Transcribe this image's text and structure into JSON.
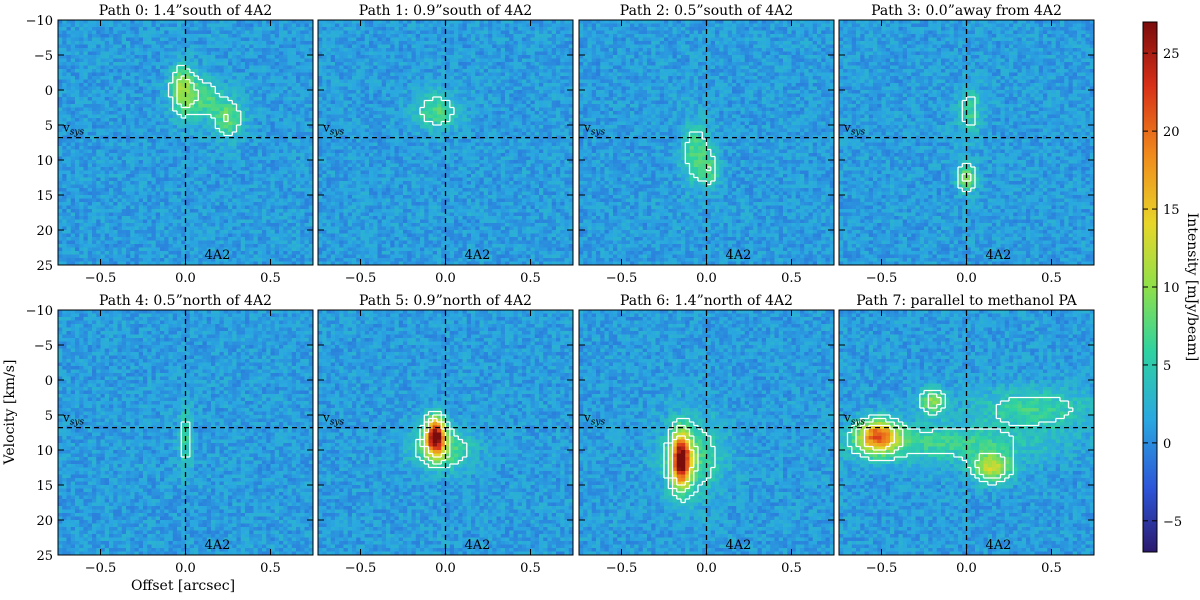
{
  "figure": {
    "ylabel": "Velocity [km/s]",
    "xlabel": "Offset [arcsec]",
    "colorbar_label": "Intensity [mJy/beam]",
    "vsys_label": "v",
    "vsys_sub": "sys",
    "source_label": "4A2"
  },
  "colors": {
    "background": "#2f6fd6",
    "contour": "#ffffff",
    "axis": "#000000",
    "colormap": [
      "#2b1a6e",
      "#2d55d8",
      "#2aa8e0",
      "#2fd2a0",
      "#8fe04a",
      "#e8d62a",
      "#f08a1c",
      "#d83018",
      "#7a0c0c"
    ]
  },
  "chart_data": [
    {
      "type": "heatmap",
      "title": "Path 0: 1.4”south of 4A2",
      "xlim": [
        -0.75,
        0.75
      ],
      "ylim": [
        25,
        -10
      ],
      "vsys": 6.8,
      "xticks": [
        -0.5,
        0.0,
        0.5
      ],
      "xtick_labels": [
        "−0.5",
        "0.0",
        "0.5"
      ],
      "yticks": [
        -10,
        -5,
        0,
        5,
        10,
        15,
        20,
        25
      ],
      "ytick_labels": [
        "−10",
        "−5",
        "0",
        "5",
        "10",
        "15",
        "20",
        "25"
      ],
      "emission": [
        {
          "x": -0.02,
          "v": 0.0,
          "peak": 9,
          "sx": 0.05,
          "sv": 2.5
        },
        {
          "x": 0.1,
          "v": 1.0,
          "peak": 6,
          "sx": 0.07,
          "sv": 2.0
        },
        {
          "x": 0.25,
          "v": 4.0,
          "peak": 7,
          "sx": 0.06,
          "sv": 2.0
        }
      ]
    },
    {
      "type": "heatmap",
      "title": "Path 1: 0.9”south of 4A2",
      "xlim": [
        -0.75,
        0.75
      ],
      "ylim": [
        25,
        -10
      ],
      "vsys": 6.8,
      "xticks": [
        -0.5,
        0.0,
        0.5
      ],
      "xtick_labels": [
        "−0.5",
        "0.0",
        "0.5"
      ],
      "yticks": [
        -10,
        -5,
        0,
        5,
        10,
        15,
        20,
        25
      ],
      "ytick_labels": [
        "−10",
        "−5",
        "0",
        "5",
        "10",
        "15",
        "20",
        "25"
      ],
      "emission": [
        {
          "x": -0.05,
          "v": 3.0,
          "peak": 6,
          "sx": 0.09,
          "sv": 1.8
        }
      ]
    },
    {
      "type": "heatmap",
      "title": "Path 2: 0.5”south of 4A2",
      "xlim": [
        -0.75,
        0.75
      ],
      "ylim": [
        25,
        -10
      ],
      "vsys": 6.8,
      "xticks": [
        -0.5,
        0.0,
        0.5
      ],
      "xtick_labels": [
        "−0.5",
        "0.0",
        "0.5"
      ],
      "yticks": [
        -10,
        -5,
        0,
        5,
        10,
        15,
        20,
        25
      ],
      "ytick_labels": [
        "−10",
        "−5",
        "0",
        "5",
        "10",
        "15",
        "20",
        "25"
      ],
      "emission": [
        {
          "x": -0.06,
          "v": 9.0,
          "peak": 6,
          "sx": 0.06,
          "sv": 3.0
        },
        {
          "x": 0.02,
          "v": 11.5,
          "peak": 5,
          "sx": 0.04,
          "sv": 1.5
        }
      ]
    },
    {
      "type": "heatmap",
      "title": "Path 3: 0.0”away from 4A2",
      "xlim": [
        -0.75,
        0.75
      ],
      "ylim": [
        25,
        -10
      ],
      "vsys": 6.8,
      "xticks": [
        -0.5,
        0.0,
        0.5
      ],
      "xtick_labels": [
        "−0.5",
        "0.0",
        "0.5"
      ],
      "yticks": [
        -10,
        -5,
        0,
        5,
        10,
        15,
        20,
        25
      ],
      "ytick_labels": [
        "−10",
        "−5",
        "0",
        "5",
        "10",
        "15",
        "20",
        "25"
      ],
      "emission": [
        {
          "x": 0.02,
          "v": 3.0,
          "peak": 5,
          "sx": 0.05,
          "sv": 2.5
        },
        {
          "x": 0.0,
          "v": 12.5,
          "peak": 8,
          "sx": 0.04,
          "sv": 1.5
        }
      ]
    },
    {
      "type": "heatmap",
      "title": "Path 4: 0.5”north of 4A2",
      "xlim": [
        -0.75,
        0.75
      ],
      "ylim": [
        25,
        -10
      ],
      "vsys": 6.8,
      "xticks": [
        -0.5,
        0.0,
        0.5
      ],
      "xtick_labels": [
        "−0.5",
        "0.0",
        "0.5"
      ],
      "yticks": [
        -10,
        -5,
        0,
        5,
        10,
        15,
        20,
        25
      ],
      "ytick_labels": [
        "−10",
        "−5",
        "0",
        "5",
        "10",
        "15",
        "20",
        "25"
      ],
      "emission": [
        {
          "x": 0.0,
          "v": 8.5,
          "peak": 5,
          "sx": 0.03,
          "sv": 3.5
        }
      ]
    },
    {
      "type": "heatmap",
      "title": "Path 5: 0.9”north of 4A2",
      "xlim": [
        -0.75,
        0.75
      ],
      "ylim": [
        25,
        -10
      ],
      "vsys": 6.8,
      "xticks": [
        -0.5,
        0.0,
        0.5
      ],
      "xtick_labels": [
        "−0.5",
        "0.0",
        "0.5"
      ],
      "yticks": [
        -10,
        -5,
        0,
        5,
        10,
        15,
        20,
        25
      ],
      "ytick_labels": [
        "−10",
        "−5",
        "0",
        "5",
        "10",
        "15",
        "20",
        "25"
      ],
      "emission": [
        {
          "x": -0.06,
          "v": 8.0,
          "peak": 25,
          "sx": 0.04,
          "sv": 1.8
        },
        {
          "x": -0.02,
          "v": 10.0,
          "peak": 7,
          "sx": 0.12,
          "sv": 2.0
        }
      ]
    },
    {
      "type": "heatmap",
      "title": "Path 6: 1.4”north of 4A2",
      "xlim": [
        -0.75,
        0.75
      ],
      "ylim": [
        25,
        -10
      ],
      "vsys": 6.8,
      "xticks": [
        -0.5,
        0.0,
        0.5
      ],
      "xtick_labels": [
        "−0.5",
        "0.0",
        "0.5"
      ],
      "yticks": [
        -10,
        -5,
        0,
        5,
        10,
        15,
        20,
        25
      ],
      "ytick_labels": [
        "−10",
        "−5",
        "0",
        "5",
        "10",
        "15",
        "20",
        "25"
      ],
      "emission": [
        {
          "x": -0.15,
          "v": 11.5,
          "peak": 24,
          "sx": 0.04,
          "sv": 2.6
        },
        {
          "x": -0.08,
          "v": 11.0,
          "peak": 6,
          "sx": 0.12,
          "sv": 4.0
        }
      ]
    },
    {
      "type": "heatmap",
      "title": "Path 7: parallel to methanol PA",
      "xlim": [
        -0.75,
        0.75
      ],
      "ylim": [
        25,
        -10
      ],
      "vsys": 6.8,
      "xticks": [
        -0.5,
        0.0,
        0.5
      ],
      "xtick_labels": [
        "−0.5",
        "0.0",
        "0.5"
      ],
      "yticks": [
        -10,
        -5,
        0,
        5,
        10,
        15,
        20,
        25
      ],
      "ytick_labels": [
        "−10",
        "−5",
        "0",
        "5",
        "10",
        "15",
        "20",
        "25"
      ],
      "emission": [
        {
          "x": -0.52,
          "v": 8.0,
          "peak": 18,
          "sx": 0.08,
          "sv": 1.6
        },
        {
          "x": 0.15,
          "v": 12.5,
          "peak": 11,
          "sx": 0.08,
          "sv": 1.5
        },
        {
          "x": -0.2,
          "v": 3.0,
          "peak": 9,
          "sx": 0.05,
          "sv": 1.2
        },
        {
          "x": -0.15,
          "v": 9.0,
          "peak": 5,
          "sx": 0.45,
          "sv": 2.0
        },
        {
          "x": 0.4,
          "v": 4.0,
          "peak": 5,
          "sx": 0.25,
          "sv": 2.0
        }
      ]
    },
    {
      "type": "colorbar",
      "vmin": -7,
      "vmax": 27,
      "ticks": [
        -5,
        0,
        5,
        10,
        15,
        20,
        25
      ],
      "tick_labels": [
        "−5",
        "0",
        "5",
        "10",
        "15",
        "20",
        "25"
      ]
    }
  ]
}
